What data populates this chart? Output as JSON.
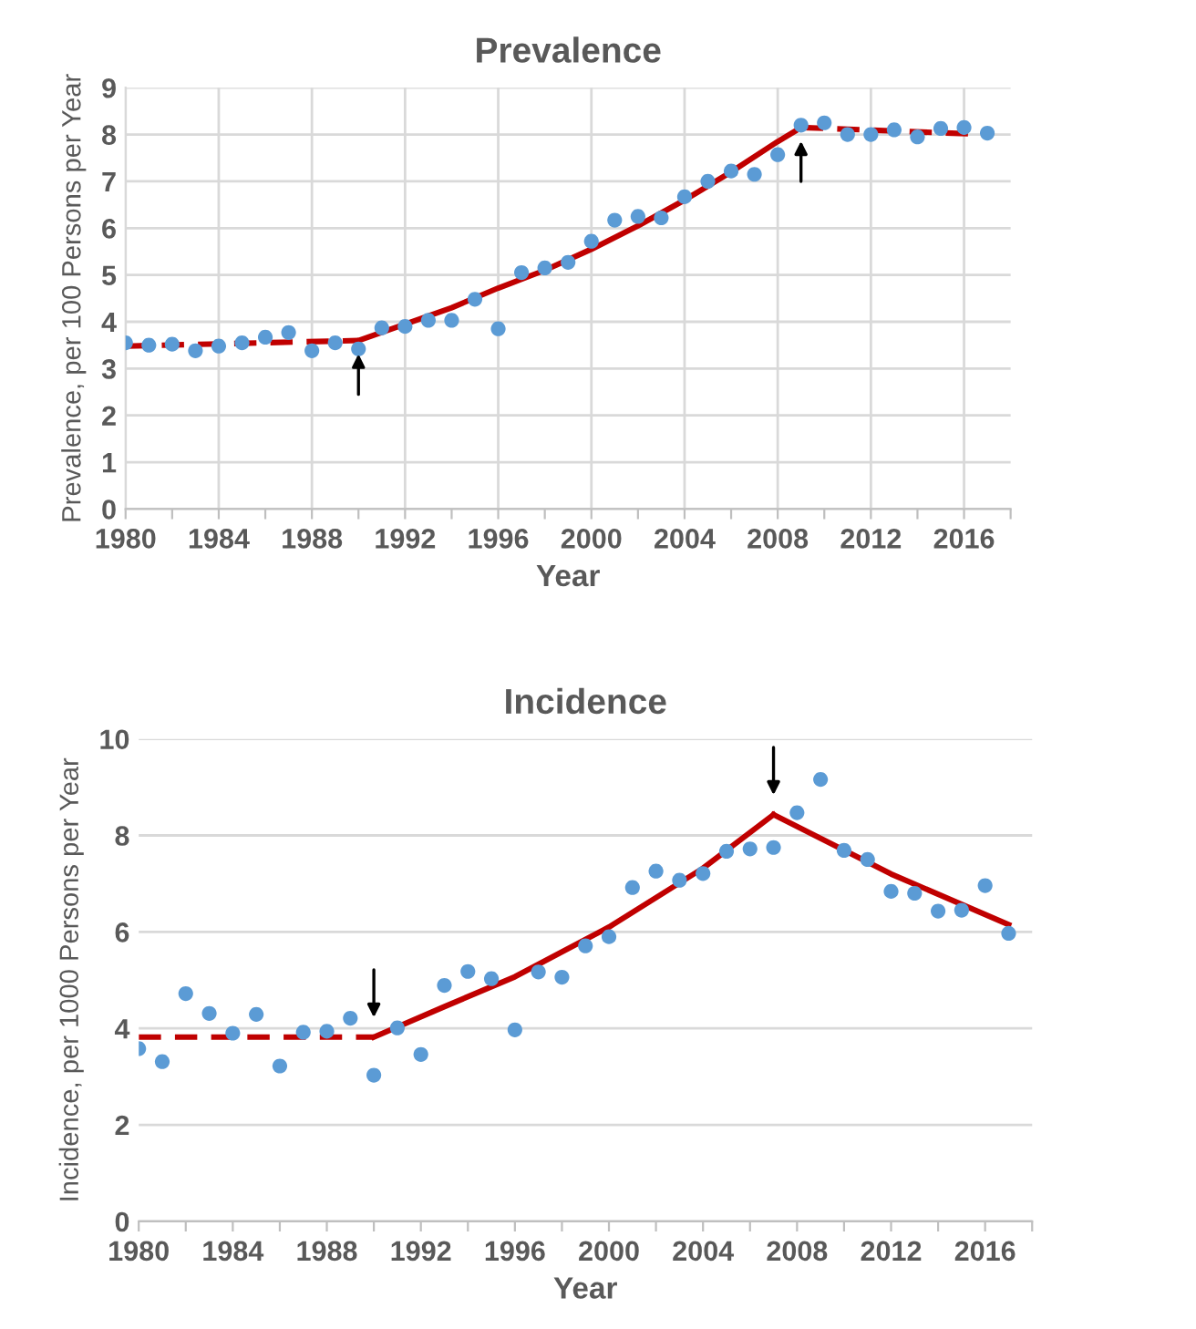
{
  "chart_data": [
    {
      "type": "scatter",
      "title": "Prevalence",
      "xlabel": "Year",
      "ylabel": "Prevalence, per 100 Persons per Year",
      "xlim": [
        1980,
        2018
      ],
      "xticks": [
        1980,
        {
          "value": 1982,
          "label": null
        },
        1984,
        {
          "value": 1986,
          "label": null
        },
        1988,
        {
          "value": 1990,
          "label": null
        },
        1992,
        {
          "value": 1994,
          "label": null
        },
        1996,
        {
          "value": 1998,
          "label": null
        },
        2000,
        {
          "value": 2002,
          "label": null
        },
        2004,
        {
          "value": 2006,
          "label": null
        },
        2008,
        {
          "value": 2010,
          "label": null
        },
        2012,
        {
          "value": 2014,
          "label": null
        },
        2016,
        {
          "value": 2018,
          "label": null
        }
      ],
      "ylim": [
        0,
        9
      ],
      "yticks": [
        0,
        1,
        2,
        3,
        4,
        5,
        6,
        7,
        8,
        9
      ],
      "grid": true,
      "legend": false,
      "series": [
        {
          "color": "#5b9bd5",
          "marker": "circle",
          "x": [
            1980,
            1981,
            1982,
            1983,
            1984,
            1985,
            1986,
            1987,
            1988,
            1989,
            1990,
            1991,
            1992,
            1993,
            1994,
            1995,
            1996,
            1997,
            1998,
            1999,
            2000,
            2001,
            2002,
            2003,
            2004,
            2005,
            2006,
            2007,
            2008,
            2009,
            2010,
            2011,
            2012,
            2013,
            2014,
            2015,
            2016,
            2017
          ],
          "values": [
            3.55,
            3.5,
            3.52,
            3.38,
            3.48,
            3.55,
            3.67,
            3.77,
            3.38,
            3.55,
            3.42,
            3.87,
            3.9,
            4.03,
            4.03,
            4.48,
            3.85,
            5.05,
            5.15,
            5.27,
            5.72,
            6.17,
            6.25,
            6.22,
            6.67,
            7.0,
            7.22,
            7.15,
            7.57,
            8.2,
            8.25,
            8.0,
            8.0,
            8.1,
            7.95,
            8.13,
            8.15,
            8.03
          ]
        },
        {
          "type": "line",
          "color": "#c00000",
          "line_style": "dashed",
          "x": [
            1980,
            1990
          ],
          "values": [
            3.48,
            3.6
          ]
        },
        {
          "type": "line",
          "color": "#c00000",
          "line_style": "solid",
          "x": [
            1990,
            1992,
            1994,
            1996,
            1998,
            2000,
            2002,
            2004,
            2006,
            2008,
            2009
          ],
          "values": [
            3.6,
            3.95,
            4.3,
            4.72,
            5.1,
            5.55,
            6.05,
            6.6,
            7.2,
            7.85,
            8.15
          ]
        },
        {
          "type": "line",
          "color": "#c00000",
          "line_style": "dashed",
          "x": [
            2009,
            2017
          ],
          "values": [
            8.15,
            8.0
          ]
        }
      ]
    },
    {
      "type": "scatter",
      "title": "Incidence",
      "xlabel": "Year",
      "ylabel": "Incidence, per 1000 Persons per Year",
      "xlim": [
        1980,
        2018
      ],
      "xticks": [
        1980,
        {
          "value": 1982,
          "label": null
        },
        1984,
        {
          "value": 1986,
          "label": null
        },
        1988,
        {
          "value": 1990,
          "label": null
        },
        1992,
        {
          "value": 1994,
          "label": null
        },
        1996,
        {
          "value": 1998,
          "label": null
        },
        2000,
        {
          "value": 2002,
          "label": null
        },
        2004,
        {
          "value": 2006,
          "label": null
        },
        2008,
        {
          "value": 2010,
          "label": null
        },
        2012,
        {
          "value": 2014,
          "label": null
        },
        2016,
        {
          "value": 2018,
          "label": null
        }
      ],
      "ylim": [
        0,
        10
      ],
      "yticks": [
        0,
        2,
        4,
        6,
        8,
        10
      ],
      "grid": "y",
      "legend": false,
      "series": [
        {
          "color": "#5b9bd5",
          "marker": "circle",
          "x": [
            1980,
            1981,
            1982,
            1983,
            1984,
            1985,
            1986,
            1987,
            1988,
            1989,
            1990,
            1991,
            1992,
            1993,
            1994,
            1995,
            1996,
            1997,
            1998,
            1999,
            2000,
            2001,
            2002,
            2003,
            2004,
            2005,
            2006,
            2007,
            2008,
            2009,
            2010,
            2011,
            2012,
            2013,
            2014,
            2015,
            2016,
            2017
          ],
          "values": [
            3.58,
            3.31,
            4.72,
            4.31,
            3.9,
            4.29,
            3.22,
            3.92,
            3.94,
            4.21,
            3.03,
            4.01,
            3.46,
            4.89,
            5.18,
            5.03,
            3.97,
            5.17,
            5.06,
            5.71,
            5.9,
            6.92,
            7.26,
            7.07,
            7.21,
            7.67,
            7.72,
            7.75,
            8.47,
            9.16,
            7.69,
            7.5,
            6.84,
            6.8,
            6.43,
            6.45,
            6.96,
            5.97
          ]
        },
        {
          "type": "line",
          "color": "#c00000",
          "line_style": "dashed",
          "x": [
            1980,
            1990
          ],
          "values": [
            3.82,
            3.82
          ]
        },
        {
          "type": "line",
          "color": "#c00000",
          "line_style": "solid",
          "x": [
            1990,
            1993,
            1996,
            2000,
            2004,
            2007
          ],
          "values": [
            3.82,
            4.45,
            5.07,
            6.1,
            7.32,
            8.43
          ]
        },
        {
          "type": "line",
          "color": "#c00000",
          "line_style": "solid",
          "x": [
            2007,
            2012,
            2017
          ],
          "values": [
            8.43,
            7.2,
            6.15
          ]
        }
      ]
    }
  ]
}
